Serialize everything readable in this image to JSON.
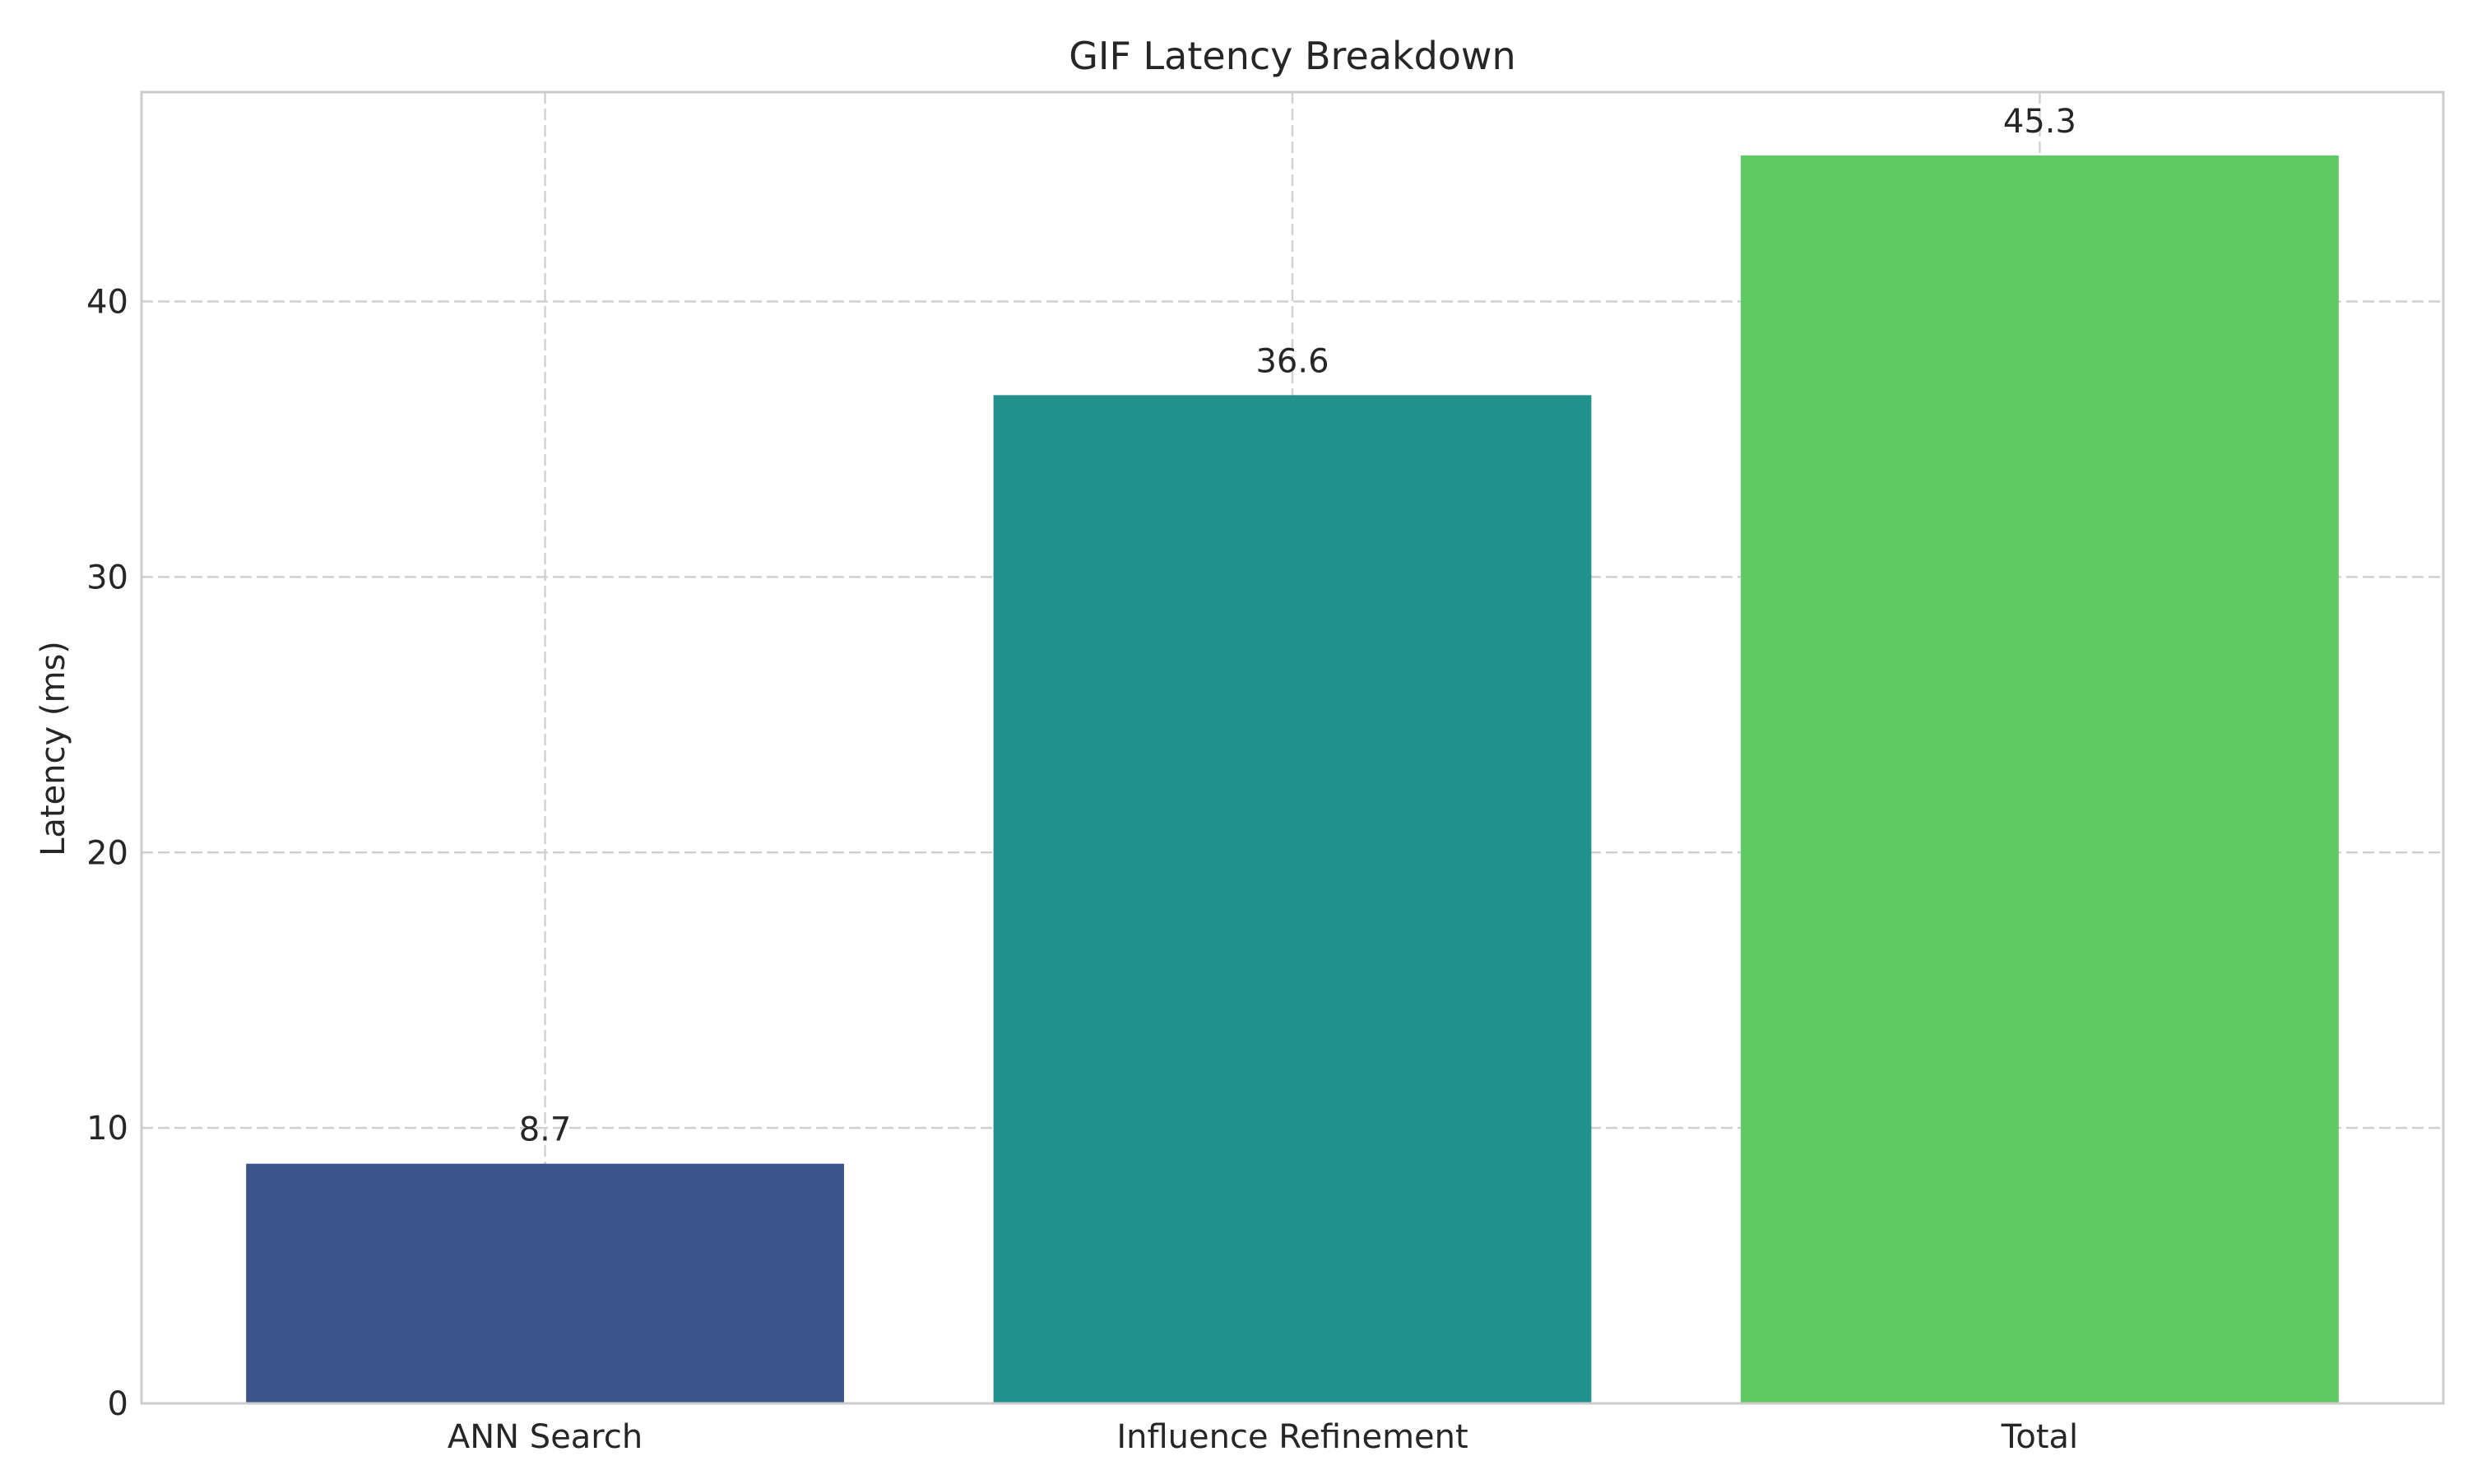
{
  "chart_data": {
    "type": "bar",
    "title": "GIF Latency Breakdown",
    "xlabel": "",
    "ylabel": "Latency (ms)",
    "categories": [
      "ANN Search",
      "Influence Refinement",
      "Total"
    ],
    "values": [
      8.7,
      36.6,
      45.3
    ],
    "value_labels": [
      "8.7",
      "36.6",
      "45.3"
    ],
    "colors": [
      "#3b528b",
      "#21918c",
      "#5ec962"
    ],
    "ylim": [
      0,
      47.6
    ],
    "yticks": [
      0,
      10,
      20,
      30,
      40
    ],
    "grid": true,
    "legend": "none"
  }
}
